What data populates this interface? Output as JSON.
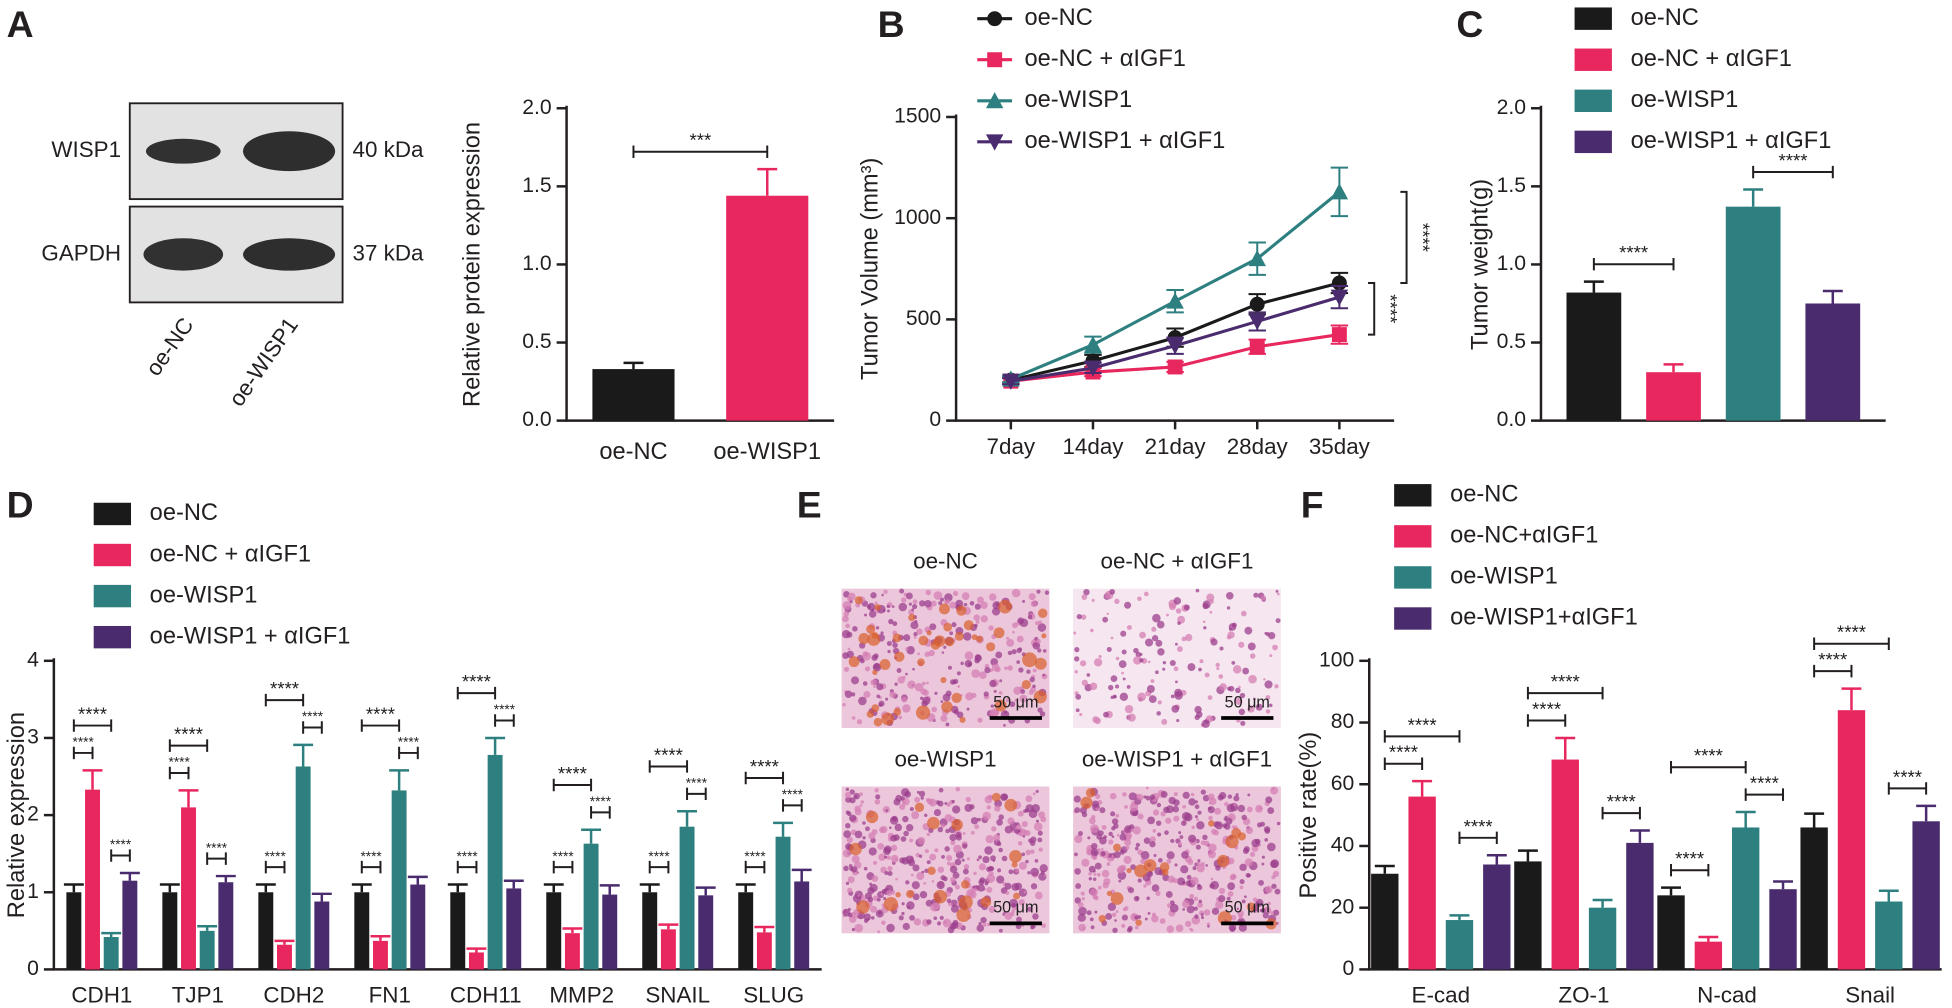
{
  "chart_data": [
    {
      "panel": "A",
      "type": "bar",
      "y_label": "Relative protein expression",
      "blot": {
        "bands": [
          "WISP1",
          "GAPDH"
        ],
        "sizes": [
          "40 kDa",
          "37 kDa"
        ],
        "lanes": [
          "oe-NC",
          "oe-WISP1"
        ]
      },
      "categories": [
        "oe-NC",
        "oe-WISP1"
      ],
      "values": [
        0.33,
        1.44
      ],
      "errors": [
        0.04,
        0.17
      ],
      "colors": [
        "#1a1a1a",
        "#e8275f"
      ],
      "annotation": "***",
      "ylim": [
        0,
        2
      ],
      "yticks": [
        {
          "value": 0,
          "label": "0.0"
        },
        0.5,
        {
          "value": 1,
          "label": "1.0"
        },
        1.5,
        {
          "value": 2,
          "label": "2.0"
        }
      ]
    },
    {
      "panel": "B",
      "type": "line",
      "y_label": "Tumor Volume (mm³)",
      "categories": [
        "7day",
        "14day",
        "21day",
        "28day",
        "35day"
      ],
      "series": [
        {
          "name": "oe-NC",
          "color": "#1a1a1a",
          "marker": "circle",
          "values": [
            200,
            295,
            410,
            575,
            680
          ],
          "errors": [
            20,
            30,
            45,
            50,
            50
          ]
        },
        {
          "name": "oe-NC + αIGF1",
          "color": "#e8275f",
          "marker": "square",
          "values": [
            195,
            240,
            265,
            365,
            425
          ],
          "errors": [
            15,
            20,
            25,
            35,
            45
          ]
        },
        {
          "name": "oe-WISP1",
          "color": "#2e8080",
          "marker": "triangle-up",
          "values": [
            205,
            375,
            590,
            800,
            1130
          ],
          "errors": [
            15,
            40,
            55,
            80,
            120
          ]
        },
        {
          "name": "oe-WISP1 + αIGF1",
          "color": "#4a2c6e",
          "marker": "triangle-down",
          "values": [
            195,
            260,
            370,
            490,
            610
          ],
          "errors": [
            15,
            25,
            40,
            45,
            55
          ]
        }
      ],
      "annotation": "****",
      "ylim": [
        0,
        1500
      ],
      "yticks": [
        0,
        500,
        1000,
        1500
      ]
    },
    {
      "panel": "C",
      "type": "bar",
      "y_label": "Tumor weight(g)",
      "categories": [
        null
      ],
      "series": [
        {
          "name": "oe-NC",
          "color": "#1a1a1a",
          "values": [
            0.82
          ],
          "errors": [
            0.07
          ]
        },
        {
          "name": "oe-NC + αIGF1",
          "color": "#e8275f",
          "values": [
            0.31
          ],
          "errors": [
            0.05
          ]
        },
        {
          "name": "oe-WISP1",
          "color": "#2e8080",
          "values": [
            1.37
          ],
          "errors": [
            0.11
          ]
        },
        {
          "name": "oe-WISP1 + αIGF1",
          "color": "#4a2c6e",
          "values": [
            0.75
          ],
          "errors": [
            0.08
          ]
        }
      ],
      "annotation": "****",
      "ylim": [
        0,
        2
      ],
      "yticks": [
        {
          "value": 0,
          "label": "0.0"
        },
        0.5,
        {
          "value": 1,
          "label": "1.0"
        },
        1.5,
        {
          "value": 2,
          "label": "2.0"
        }
      ]
    },
    {
      "panel": "D",
      "type": "bar",
      "y_label": "Relative expression",
      "categories": [
        "CDH1",
        "TJP1",
        "CDH2",
        "FN1",
        "CDH11",
        "MMP2",
        "SNAIL",
        "SLUG"
      ],
      "series": [
        {
          "name": "oe-NC",
          "color": "#1a1a1a",
          "values": [
            1,
            1,
            1,
            1,
            1,
            1,
            1,
            1
          ],
          "errors": [
            0.1,
            0.1,
            0.1,
            0.1,
            0.1,
            0.1,
            0.1,
            0.1
          ]
        },
        {
          "name": "oe-NC + αIGF1",
          "color": "#e8275f",
          "values": [
            2.33,
            2.1,
            0.32,
            0.37,
            0.22,
            0.47,
            0.52,
            0.48
          ],
          "errors": [
            0.25,
            0.22,
            0.05,
            0.06,
            0.05,
            0.06,
            0.06,
            0.07
          ]
        },
        {
          "name": "oe-WISP1",
          "color": "#2e8080",
          "values": [
            0.42,
            0.5,
            2.63,
            2.32,
            2.78,
            1.63,
            1.85,
            1.72
          ],
          "errors": [
            0.05,
            0.06,
            0.28,
            0.26,
            0.22,
            0.18,
            0.2,
            0.18
          ]
        },
        {
          "name": "oe-WISP1 + αIGF1",
          "color": "#4a2c6e",
          "values": [
            1.15,
            1.13,
            0.88,
            1.1,
            1.05,
            0.97,
            0.96,
            1.14
          ],
          "errors": [
            0.1,
            0.08,
            0.1,
            0.1,
            0.1,
            0.12,
            0.1,
            0.15
          ]
        }
      ],
      "annotation": "****",
      "ylim": [
        0,
        4
      ],
      "yticks": [
        0,
        1,
        2,
        3,
        4
      ]
    },
    {
      "panel": "E",
      "type": "image",
      "titles": [
        "oe-NC",
        "oe-NC + αIGF1",
        "oe-WISP1",
        "oe-WISP1 + αIGF1"
      ],
      "scale_bar": "50 μm"
    },
    {
      "panel": "F",
      "type": "bar",
      "y_label": "Positive rate(%)",
      "categories": [
        "E-cad",
        "ZO-1",
        "N-cad",
        "Snail"
      ],
      "series": [
        {
          "name": "oe-NC",
          "color": "#1a1a1a",
          "values": [
            31,
            35,
            24,
            46
          ],
          "errors": [
            2.5,
            3.5,
            2.5,
            4.5
          ]
        },
        {
          "name": "oe-NC+αIGF1",
          "color": "#e8275f",
          "values": [
            56,
            68,
            9,
            84
          ],
          "errors": [
            5,
            7,
            1.5,
            7
          ]
        },
        {
          "name": "oe-WISP1",
          "color": "#2e8080",
          "values": [
            16,
            20,
            46,
            22
          ],
          "errors": [
            1.5,
            2.5,
            5,
            3.5
          ]
        },
        {
          "name": "oe-WISP1+αIGF1",
          "color": "#4a2c6e",
          "values": [
            34,
            41,
            26,
            48
          ],
          "errors": [
            3,
            4,
            2.5,
            5
          ]
        }
      ],
      "annotation": "****",
      "ylim": [
        0,
        100
      ],
      "yticks": [
        0,
        20,
        40,
        60,
        80,
        100
      ]
    }
  ]
}
